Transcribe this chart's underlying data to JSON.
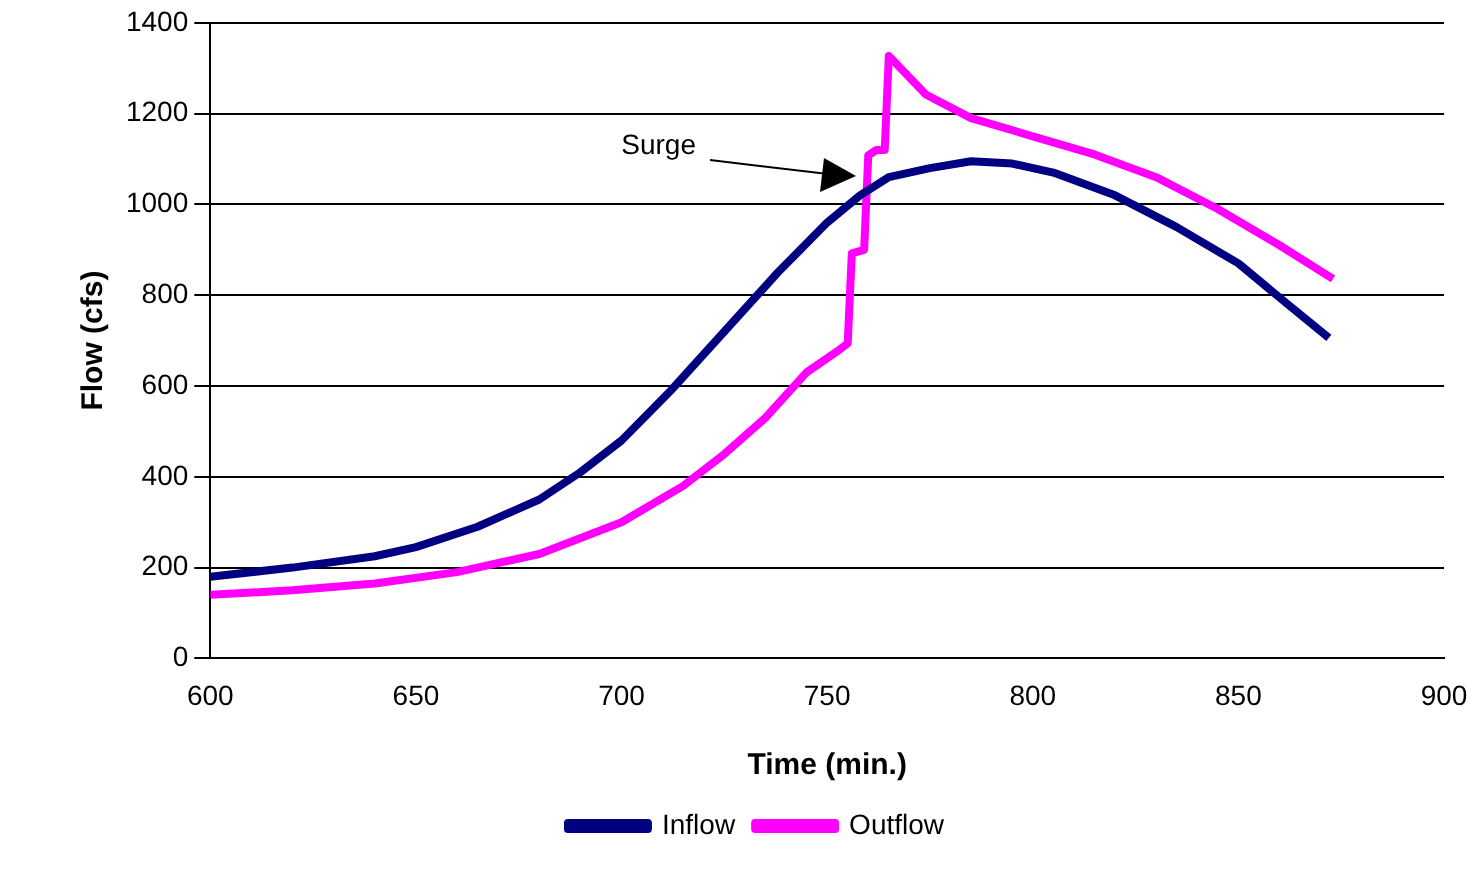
{
  "chart_data": {
    "type": "line",
    "xlabel": "Time (min.)",
    "ylabel": "Flow (cfs)",
    "xlim": [
      600,
      900
    ],
    "xticks": [
      600,
      650,
      700,
      750,
      800,
      850,
      900
    ],
    "ylim": [
      0,
      1400
    ],
    "yticks": [
      0,
      200,
      400,
      600,
      800,
      1000,
      1200,
      1400
    ],
    "grid": "y",
    "legend": "bottom",
    "marker": "none",
    "line_style": "solid",
    "annotations": [
      "Surge"
    ],
    "series": [
      {
        "name": "Inflow",
        "color": "#000080",
        "x": [
          600,
          620,
          640,
          650,
          665,
          680,
          690,
          700,
          712,
          725,
          738,
          750,
          758,
          765,
          775,
          785,
          795,
          805,
          820,
          835,
          850,
          862,
          872
        ],
        "values": [
          180,
          200,
          225,
          245,
          290,
          350,
          410,
          480,
          590,
          720,
          850,
          960,
          1020,
          1060,
          1080,
          1095,
          1090,
          1070,
          1020,
          950,
          870,
          780,
          706
        ]
      },
      {
        "name": "Outflow",
        "color": "#ff00ff",
        "x": [
          600,
          620,
          640,
          660,
          680,
          700,
          715,
          725,
          735,
          745,
          753,
          755,
          756,
          759,
          760,
          762,
          764,
          765,
          774,
          785,
          800,
          815,
          830,
          845,
          860,
          873
        ],
        "values": [
          140,
          150,
          165,
          190,
          230,
          300,
          380,
          450,
          530,
          630,
          680,
          694,
          892,
          900,
          1108,
          1120,
          1120,
          1327,
          1242,
          1190,
          1150,
          1110,
          1060,
          990,
          910,
          836
        ]
      }
    ]
  }
}
